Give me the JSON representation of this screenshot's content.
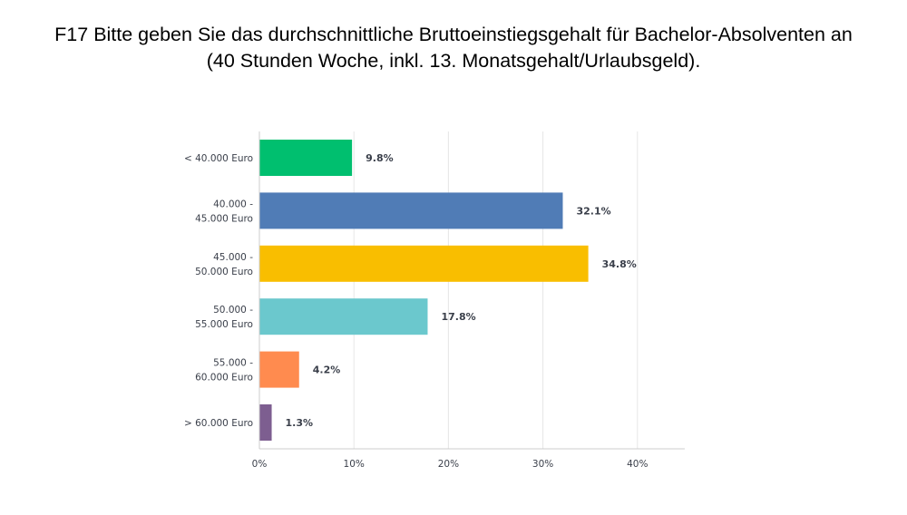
{
  "chart_data": {
    "type": "bar",
    "orientation": "horizontal",
    "title_lines": [
      "F17 Bitte geben Sie das durchschnittliche Bruttoeinstiegsgehalt für Bachelor-Absolventen an",
      "(40 Stunden Woche, inkl. 13. Monatsgehalt/Urlaubsgeld)."
    ],
    "categories": [
      [
        "< 40.000 Euro"
      ],
      [
        "40.000 -",
        "45.000 Euro"
      ],
      [
        "45.000 -",
        "50.000 Euro"
      ],
      [
        "50.000 -",
        "55.000 Euro"
      ],
      [
        "55.000 -",
        "60.000 Euro"
      ],
      [
        "> 60.000 Euro"
      ]
    ],
    "values": [
      9.8,
      32.1,
      34.8,
      17.8,
      4.2,
      1.3
    ],
    "value_labels": [
      "9.8%",
      "32.1%",
      "34.8%",
      "17.8%",
      "4.2%",
      "1.3%"
    ],
    "colors": [
      "#00bf6f",
      "#507cb6",
      "#f9be00",
      "#6bc8cd",
      "#ff8b4f",
      "#7d5e90"
    ],
    "xticks": [
      0,
      10,
      20,
      30,
      40
    ],
    "xtick_labels": [
      "0%",
      "10%",
      "20%",
      "30%",
      "40%"
    ],
    "xlim": [
      0,
      45
    ],
    "xlabel": "",
    "ylabel": "",
    "grid": true,
    "legend": "none"
  }
}
